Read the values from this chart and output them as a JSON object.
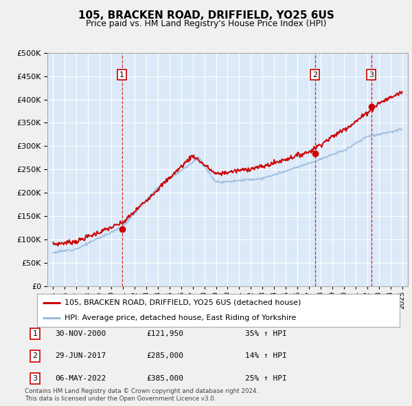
{
  "title": "105, BRACKEN ROAD, DRIFFIELD, YO25 6US",
  "subtitle": "Price paid vs. HM Land Registry's House Price Index (HPI)",
  "legend_label_red": "105, BRACKEN ROAD, DRIFFIELD, YO25 6US (detached house)",
  "legend_label_blue": "HPI: Average price, detached house, East Riding of Yorkshire",
  "footer1": "Contains HM Land Registry data © Crown copyright and database right 2024.",
  "footer2": "This data is licensed under the Open Government Licence v3.0.",
  "transactions": [
    {
      "num": 1,
      "date": "30-NOV-2000",
      "price": 121950,
      "pct": "35%",
      "dir": "↑",
      "year": 2000.92
    },
    {
      "num": 2,
      "date": "29-JUN-2017",
      "price": 285000,
      "pct": "14%",
      "dir": "↑",
      "year": 2017.5
    },
    {
      "num": 3,
      "date": "06-MAY-2022",
      "price": 385000,
      "pct": "25%",
      "dir": "↑",
      "year": 2022.35
    }
  ],
  "ylim": [
    0,
    500000
  ],
  "yticks": [
    0,
    50000,
    100000,
    150000,
    200000,
    250000,
    300000,
    350000,
    400000,
    450000,
    500000
  ],
  "xlim_start": 1994.5,
  "xlim_end": 2025.5,
  "fig_bg": "#f0f0f0",
  "plot_bg": "#dce9f8",
  "grid_color": "#ffffff",
  "red_color": "#cc0000",
  "blue_color": "#99bbdd",
  "vline_color": "#cc0000"
}
